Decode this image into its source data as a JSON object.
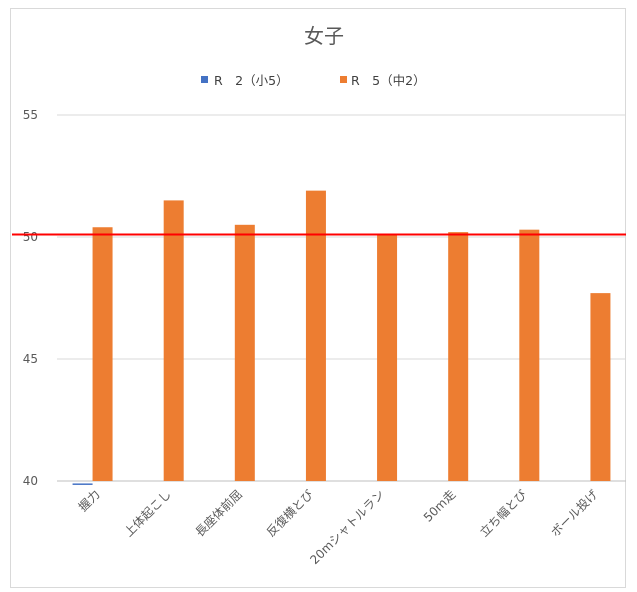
{
  "chart_data": {
    "type": "bar",
    "title": "女子",
    "categories": [
      "握力",
      "上体起こし",
      "長座体前屈",
      "反復横とび",
      "20mシャトルラン",
      "50m走",
      "立ち幅とび",
      "ボール投げ"
    ],
    "series": [
      {
        "name": "R　2（小5）",
        "color": "#4472C4",
        "values": [
          39.9,
          null,
          null,
          null,
          null,
          null,
          null,
          null
        ]
      },
      {
        "name": "R　5（中2）",
        "color": "#ED7D31",
        "values": [
          50.4,
          51.5,
          50.5,
          51.9,
          50.1,
          50.2,
          50.3,
          47.7
        ]
      }
    ],
    "ylim": [
      40,
      55
    ],
    "yticks": [
      40,
      45,
      50,
      55
    ],
    "grid": true,
    "legend_position": "top",
    "reference_line": {
      "value": 50.1,
      "color": "#FF0000"
    }
  }
}
